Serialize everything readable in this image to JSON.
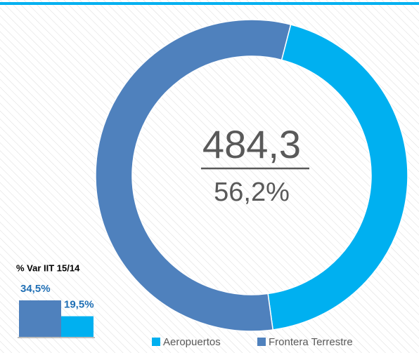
{
  "chart_data": [
    {
      "type": "donut",
      "categories": [
        "Aeropuertos",
        "Frontera Terrestre"
      ],
      "values": [
        43.8,
        56.2
      ],
      "colors": [
        "#00b0f0",
        "#4f81bd"
      ],
      "center_value": "484,3",
      "center_label": "56,2%",
      "legend": "bottom-right"
    },
    {
      "type": "bar",
      "title": "% Var IIT 15/14",
      "categories": [
        null,
        null
      ],
      "values": [
        34.5,
        19.5
      ],
      "value_labels": [
        "34,5%",
        "19,5%"
      ],
      "colors": [
        "#4f81bd",
        "#00b0f0"
      ]
    }
  ]
}
